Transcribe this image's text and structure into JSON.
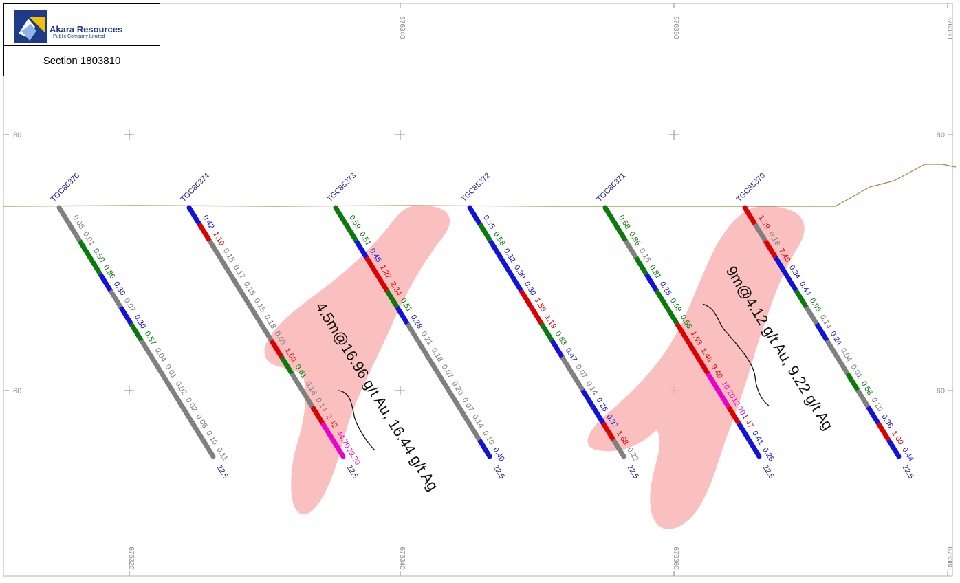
{
  "header": {
    "company_name": "Akara Resources",
    "company_sub": "Public Company Limited",
    "section_label": "Section 1803810"
  },
  "grid": {
    "x_labels": [
      "676320",
      "676340",
      "676360",
      "676380"
    ],
    "y_labels": [
      "80",
      "60"
    ]
  },
  "colors": {
    "gray": "#808080",
    "green": "#0a7a0a",
    "blue": "#1212dd",
    "red": "#dd0000",
    "magenta": "#ee00cc",
    "zone": "#f9b4b4",
    "topo": "#b08040",
    "hole_label": "#1a1a8a"
  },
  "holes": [
    {
      "name": "TGC85375",
      "depth_label": "22.5",
      "segments": [
        {
          "value": "0.05",
          "color": "gray"
        },
        {
          "value": "0.01",
          "color": "gray"
        },
        {
          "value": "0.50",
          "color": "green"
        },
        {
          "value": "0.86",
          "color": "green"
        },
        {
          "value": "0.30",
          "color": "blue"
        },
        {
          "value": "0.07",
          "color": "gray"
        },
        {
          "value": "0.30",
          "color": "blue"
        },
        {
          "value": "0.57",
          "color": "green"
        },
        {
          "value": "0.04",
          "color": "gray"
        },
        {
          "value": "0.01",
          "color": "gray"
        },
        {
          "value": "0.02",
          "color": "gray"
        },
        {
          "value": "0.02",
          "color": "gray"
        },
        {
          "value": "0.06",
          "color": "gray"
        },
        {
          "value": "0.10",
          "color": "gray"
        },
        {
          "value": "0.11",
          "color": "gray"
        }
      ]
    },
    {
      "name": "TGC85374",
      "depth_label": "22.5",
      "segments": [
        {
          "value": "0.42",
          "color": "blue"
        },
        {
          "value": "1.10",
          "color": "red"
        },
        {
          "value": "0.15",
          "color": "gray"
        },
        {
          "value": "0.17",
          "color": "gray"
        },
        {
          "value": "0.15",
          "color": "gray"
        },
        {
          "value": "0.15",
          "color": "gray"
        },
        {
          "value": "0.18",
          "color": "gray"
        },
        {
          "value": "0.05",
          "color": "gray"
        },
        {
          "value": "1.60",
          "color": "red"
        },
        {
          "value": "0.61",
          "color": "green"
        },
        {
          "value": "0.16",
          "color": "gray"
        },
        {
          "value": "0.14",
          "color": "gray"
        },
        {
          "value": "2.42",
          "color": "red"
        },
        {
          "value": "44.70",
          "color": "magenta"
        },
        {
          "value": "29.20",
          "color": "magenta"
        }
      ]
    },
    {
      "name": "TGC85373",
      "depth_label": "22.5",
      "segments": [
        {
          "value": "0.59",
          "color": "green"
        },
        {
          "value": "0.51",
          "color": "green"
        },
        {
          "value": "0.45",
          "color": "blue"
        },
        {
          "value": "1.27",
          "color": "red"
        },
        {
          "value": "2.34",
          "color": "red"
        },
        {
          "value": "0.51",
          "color": "green"
        },
        {
          "value": "0.28",
          "color": "blue"
        },
        {
          "value": "0.21",
          "color": "gray"
        },
        {
          "value": "0.18",
          "color": "gray"
        },
        {
          "value": "0.07",
          "color": "gray"
        },
        {
          "value": "0.20",
          "color": "gray"
        },
        {
          "value": "0.07",
          "color": "gray"
        },
        {
          "value": "0.14",
          "color": "gray"
        },
        {
          "value": "0.10",
          "color": "gray"
        },
        {
          "value": "0.40",
          "color": "blue"
        }
      ]
    },
    {
      "name": "TGC85372",
      "depth_label": "22.5",
      "segments": [
        {
          "value": "0.35",
          "color": "blue"
        },
        {
          "value": "0.58",
          "color": "green"
        },
        {
          "value": "0.32",
          "color": "blue"
        },
        {
          "value": "0.30",
          "color": "blue"
        },
        {
          "value": "0.30",
          "color": "blue"
        },
        {
          "value": "1.55",
          "color": "red"
        },
        {
          "value": "1.19",
          "color": "red"
        },
        {
          "value": "0.63",
          "color": "green"
        },
        {
          "value": "0.47",
          "color": "blue"
        },
        {
          "value": "0.07",
          "color": "gray"
        },
        {
          "value": "0.14",
          "color": "gray"
        },
        {
          "value": "0.26",
          "color": "blue"
        },
        {
          "value": "0.37",
          "color": "blue"
        },
        {
          "value": "1.68",
          "color": "red"
        },
        {
          "value": "0.22",
          "color": "gray"
        }
      ]
    },
    {
      "name": "TGC85371",
      "depth_label": "22.5",
      "segments": [
        {
          "value": "0.58",
          "color": "green"
        },
        {
          "value": "0.86",
          "color": "green"
        },
        {
          "value": "0.16",
          "color": "gray"
        },
        {
          "value": "0.81",
          "color": "green"
        },
        {
          "value": "0.25",
          "color": "blue"
        },
        {
          "value": "0.69",
          "color": "green"
        },
        {
          "value": "0.66",
          "color": "green"
        },
        {
          "value": "1.93",
          "color": "red"
        },
        {
          "value": "1.46",
          "color": "red"
        },
        {
          "value": "9.40",
          "color": "red"
        },
        {
          "value": "10.20",
          "color": "magenta"
        },
        {
          "value": "12.70",
          "color": "magenta"
        },
        {
          "value": "1.47",
          "color": "red"
        },
        {
          "value": "0.41",
          "color": "blue"
        },
        {
          "value": "0.25",
          "color": "blue"
        }
      ]
    },
    {
      "name": "TGC85370",
      "depth_label": "22.5",
      "segments": [
        {
          "value": "1.39",
          "color": "red"
        },
        {
          "value": "0.18",
          "color": "gray"
        },
        {
          "value": "7.40",
          "color": "red"
        },
        {
          "value": "0.34",
          "color": "blue"
        },
        {
          "value": "0.44",
          "color": "blue"
        },
        {
          "value": "0.95",
          "color": "green"
        },
        {
          "value": "0.14",
          "color": "gray"
        },
        {
          "value": "0.24",
          "color": "blue"
        },
        {
          "value": "0.04",
          "color": "gray"
        },
        {
          "value": "0.01",
          "color": "gray"
        },
        {
          "value": "0.58",
          "color": "green"
        },
        {
          "value": "0.20",
          "color": "gray"
        },
        {
          "value": "0.36",
          "color": "blue"
        },
        {
          "value": "1.00",
          "color": "red"
        },
        {
          "value": "0.44",
          "color": "blue"
        }
      ]
    }
  ],
  "intercepts": [
    {
      "text": "4.5m@16.96 g/t Au, 16.44 g/t Ag"
    },
    {
      "text": "9m@4.12 g/t Au, 9.22 g/t Ag"
    }
  ]
}
